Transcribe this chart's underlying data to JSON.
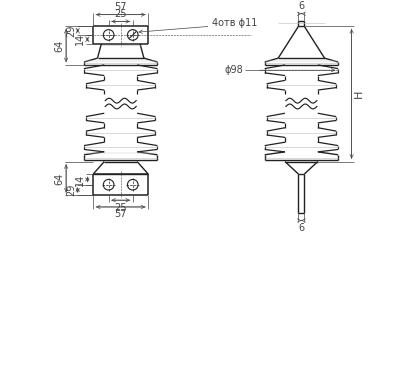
{
  "bg_color": "#ffffff",
  "line_color": "#222222",
  "dim_color": "#444444",
  "fig_width": 3.96,
  "fig_height": 3.9,
  "dpi": 100,
  "annotations": {
    "dim_57_top": "57",
    "dim_25_top": "25",
    "dim_4otv_phi11": "4отв ϕ11",
    "dim_6_top_right": "6",
    "dim_29_left": "29",
    "dim_14_left": "14",
    "dim_64_left": "64",
    "dim_phi98": "ϕ98",
    "dim_H": "H",
    "dim_64_bottom_left": "64",
    "dim_29_bottom": "29",
    "dim_14_bottom": "14",
    "dim_25_bottom": "25",
    "dim_57_bottom": "57",
    "dim_6_bottom_right": "6"
  }
}
